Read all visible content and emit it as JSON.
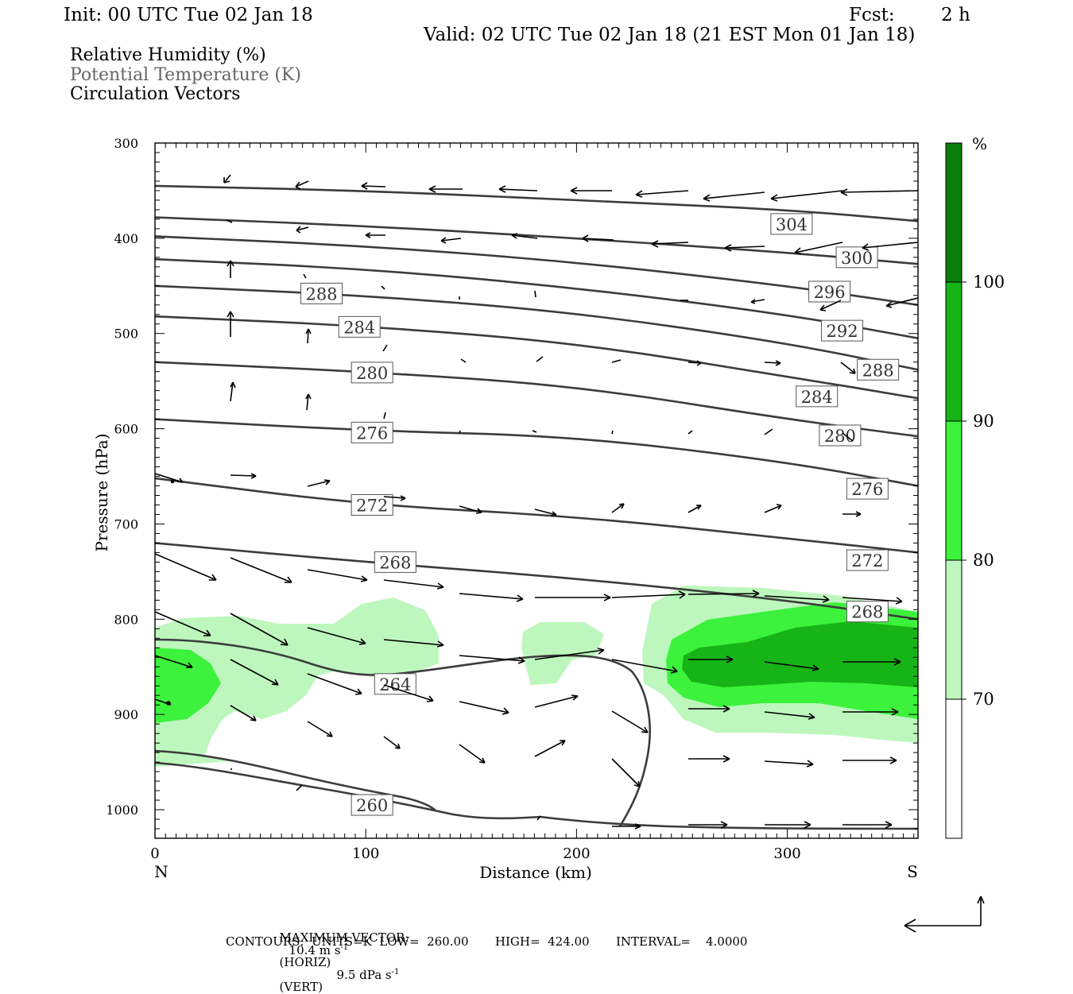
{
  "header": {
    "init": "Init: 00 UTC Tue 02 Jan 18",
    "fcst_label": "Fcst:",
    "fcst_value": "2 h",
    "valid": "Valid: 02 UTC Tue 02 Jan 18 (21 EST Mon 01 Jan 18)"
  },
  "legend": {
    "rh": "Relative Humidity (%)",
    "theta": "Potential Temperature (K)",
    "vectors": "Circulation Vectors"
  },
  "footer": {
    "max_vector_label": "MAXIMUM VECTOR:",
    "horiz_value": "10.4 m s",
    "horiz_exp": "-1",
    "horiz_unit": "(HORIZ)",
    "vert_value": "9.5 dPa s",
    "vert_exp": "-1",
    "vert_unit": "(VERT)",
    "contours": "CONTOURS:  UNITS=K  LOW=  260.00       HIGH=  424.00       INTERVAL=    4.0000"
  },
  "colors": {
    "rh_70_80": "#bdf7bd",
    "rh_80_90": "#3cf23c",
    "rh_90_100": "#16b416",
    "rh_100": "#0a7e0a",
    "contour": "#3c3c3c"
  },
  "chart_data": {
    "type": "cross-section",
    "xlabel": "Distance (km)",
    "ylabel": "Pressure (hPa)",
    "xlim": [
      0,
      362
    ],
    "ylim": [
      1030,
      300
    ],
    "x_ticks": [
      0,
      100,
      200,
      300
    ],
    "y_ticks": [
      300,
      400,
      500,
      600,
      700,
      800,
      900,
      1000
    ],
    "left_end_label": "N",
    "right_end_label": "S",
    "colorbar": {
      "unit": "%",
      "levels": [
        70,
        80,
        90,
        100
      ],
      "colors": [
        "#ffffff",
        "#bdf7bd",
        "#3cf23c",
        "#16b416",
        "#0a7e0a"
      ]
    },
    "theta_contours": [
      {
        "value": 304,
        "points": [
          [
            0,
            345
          ],
          [
            100,
            350
          ],
          [
            200,
            360
          ],
          [
            300,
            370
          ],
          [
            362,
            382
          ]
        ],
        "label_at": [
          302,
          385
        ]
      },
      {
        "value": 300,
        "points": [
          [
            0,
            378
          ],
          [
            100,
            387
          ],
          [
            200,
            400
          ],
          [
            300,
            415
          ],
          [
            362,
            427
          ]
        ],
        "label_at": [
          333,
          420
        ]
      },
      {
        "value": 296,
        "points": [
          [
            0,
            398
          ],
          [
            100,
            408
          ],
          [
            200,
            425
          ],
          [
            300,
            450
          ],
          [
            362,
            470
          ]
        ],
        "label_at": [
          320,
          456
        ]
      },
      {
        "value": 292,
        "points": [
          [
            0,
            422
          ],
          [
            100,
            432
          ],
          [
            200,
            452
          ],
          [
            300,
            480
          ],
          [
            362,
            505
          ]
        ],
        "label_at": [
          326,
          497
        ]
      },
      {
        "value": 288,
        "points": [
          [
            0,
            450
          ],
          [
            100,
            460
          ],
          [
            200,
            478
          ],
          [
            300,
            510
          ],
          [
            362,
            538
          ]
        ],
        "label_at": [
          79,
          458
        ],
        "label2_at": [
          343,
          538
        ]
      },
      {
        "value": 284,
        "points": [
          [
            0,
            482
          ],
          [
            100,
            492
          ],
          [
            200,
            510
          ],
          [
            300,
            545
          ],
          [
            362,
            568
          ]
        ],
        "label_at": [
          97,
          493
        ],
        "label2_at": [
          314,
          566
        ]
      },
      {
        "value": 280,
        "points": [
          [
            0,
            530
          ],
          [
            100,
            540
          ],
          [
            200,
            555
          ],
          [
            300,
            590
          ],
          [
            362,
            608
          ]
        ],
        "label_at": [
          103,
          541
        ],
        "label2_at": [
          325,
          607
        ]
      },
      {
        "value": 276,
        "points": [
          [
            0,
            590
          ],
          [
            100,
            602
          ],
          [
            200,
            608
          ],
          [
            300,
            635
          ],
          [
            362,
            660
          ]
        ],
        "label_at": [
          103,
          604
        ],
        "label2_at": [
          338,
          663
        ]
      },
      {
        "value": 272,
        "points": [
          [
            0,
            652
          ],
          [
            100,
            680
          ],
          [
            200,
            692
          ],
          [
            300,
            715
          ],
          [
            362,
            730
          ]
        ],
        "label_at": [
          103,
          680
        ],
        "label2_at": [
          338,
          738
        ]
      },
      {
        "value": 268,
        "points": [
          [
            0,
            720
          ],
          [
            100,
            740
          ],
          [
            200,
            757
          ],
          [
            300,
            780
          ],
          [
            362,
            800
          ]
        ],
        "label_at": [
          114,
          740
        ],
        "label2_at": [
          338,
          792
        ]
      }
    ],
    "theta_264": {
      "value": 264,
      "label_at": [
        114,
        868
      ]
    },
    "theta_260": {
      "value": 260,
      "label_at": [
        103,
        995
      ]
    },
    "vectors_note": "Circulation vectors drawn as arrows along the cross-section"
  }
}
